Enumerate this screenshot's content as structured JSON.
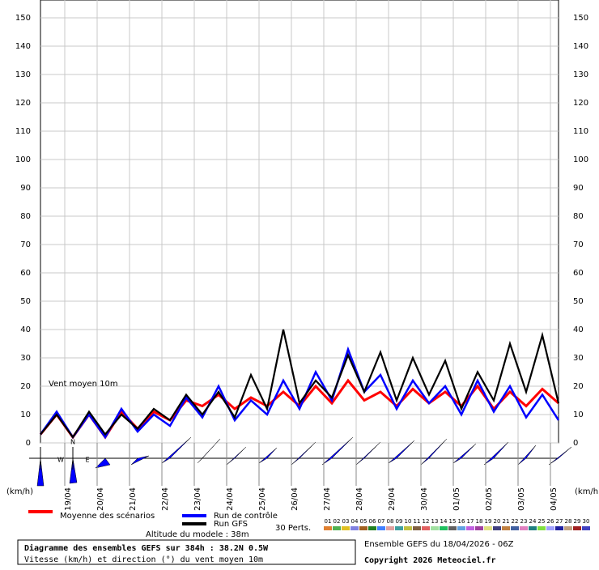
{
  "chart_data": {
    "type": "line",
    "annotation": "Vent moyen 10m",
    "unit_label": "(km/h)",
    "compass": [
      "N",
      "W",
      "E"
    ],
    "x": [
      0,
      12,
      24,
      36,
      48,
      60,
      72,
      84,
      96,
      108,
      120,
      132,
      144,
      156,
      168,
      180,
      192,
      204,
      216,
      228,
      240,
      252,
      264,
      276,
      288,
      300,
      312,
      324,
      336,
      348,
      360,
      372,
      384
    ],
    "xlim": [
      0,
      384
    ],
    "xticks": [
      {
        "value": 18,
        "label": "19/04"
      },
      {
        "value": 42,
        "label": "20/04"
      },
      {
        "value": 66,
        "label": "21/04"
      },
      {
        "value": 90,
        "label": "22/04"
      },
      {
        "value": 114,
        "label": "23/04"
      },
      {
        "value": 138,
        "label": "24/04"
      },
      {
        "value": 162,
        "label": "25/04"
      },
      {
        "value": 186,
        "label": "26/04"
      },
      {
        "value": 210,
        "label": "27/04"
      },
      {
        "value": 234,
        "label": "28/04"
      },
      {
        "value": 258,
        "label": "29/04"
      },
      {
        "value": 282,
        "label": "30/04"
      },
      {
        "value": 306,
        "label": "01/05"
      },
      {
        "value": 330,
        "label": "02/05"
      },
      {
        "value": 354,
        "label": "03/05"
      },
      {
        "value": 378,
        "label": "04/05"
      }
    ],
    "ylim": [
      0,
      150
    ],
    "yticks": [
      0,
      10,
      20,
      30,
      40,
      50,
      60,
      70,
      80,
      90,
      100,
      110,
      120,
      130,
      140,
      150
    ],
    "grid": true,
    "series": [
      {
        "name": "Moyenne des scénarios",
        "color": "#ff0000",
        "values": [
          3,
          10,
          2,
          10,
          2,
          11,
          5,
          11,
          8,
          15,
          13,
          17,
          12,
          16,
          13,
          18,
          13,
          20,
          14,
          22,
          15,
          18,
          13,
          19,
          14,
          18,
          13,
          20,
          12,
          18,
          13,
          19,
          14
        ]
      },
      {
        "name": "Run de contrôle",
        "color": "#0000ff",
        "values": [
          3,
          11,
          2,
          10,
          2,
          12,
          4,
          10,
          6,
          16,
          9,
          20,
          8,
          15,
          10,
          22,
          12,
          25,
          15,
          33,
          18,
          24,
          12,
          22,
          14,
          20,
          10,
          22,
          11,
          20,
          9,
          17,
          8
        ]
      },
      {
        "name": "Run GFS",
        "color": "#000000",
        "values": [
          3,
          10,
          2,
          11,
          3,
          10,
          5,
          12,
          8,
          17,
          10,
          18,
          9,
          24,
          12,
          40,
          14,
          22,
          16,
          31,
          18,
          32,
          15,
          30,
          17,
          29,
          12,
          25,
          15,
          35,
          18,
          38,
          14
        ]
      }
    ],
    "perturbations_label": "30 Perts.",
    "perturbations": [
      {
        "label": "01",
        "color": "#e08030"
      },
      {
        "label": "02",
        "color": "#50b050"
      },
      {
        "label": "03",
        "color": "#e0c020"
      },
      {
        "label": "04",
        "color": "#8080e0"
      },
      {
        "label": "05",
        "color": "#a06020"
      },
      {
        "label": "06",
        "color": "#208020"
      },
      {
        "label": "07",
        "color": "#4080ff"
      },
      {
        "label": "08",
        "color": "#e0a0a0"
      },
      {
        "label": "09",
        "color": "#40a0a0"
      },
      {
        "label": "10",
        "color": "#c0c040"
      },
      {
        "label": "11",
        "color": "#806040"
      },
      {
        "label": "12",
        "color": "#e06060"
      },
      {
        "label": "13",
        "color": "#a0e0a0"
      },
      {
        "label": "14",
        "color": "#20c060"
      },
      {
        "label": "15",
        "color": "#606060"
      },
      {
        "label": "16",
        "color": "#60a0e0"
      },
      {
        "label": "17",
        "color": "#c060e0"
      },
      {
        "label": "18",
        "color": "#a040a0"
      },
      {
        "label": "19",
        "color": "#e0e080"
      },
      {
        "label": "20",
        "color": "#404080"
      },
      {
        "label": "21",
        "color": "#c08040"
      },
      {
        "label": "22",
        "color": "#4060a0"
      },
      {
        "label": "23",
        "color": "#e080c0"
      },
      {
        "label": "24",
        "color": "#208080"
      },
      {
        "label": "25",
        "color": "#80e040"
      },
      {
        "label": "26",
        "color": "#a0a0ff"
      },
      {
        "label": "27",
        "color": "#2020a0"
      },
      {
        "label": "28",
        "color": "#c0a080"
      },
      {
        "label": "29",
        "color": "#a02020"
      },
      {
        "label": "30",
        "color": "#4040c0"
      }
    ],
    "altitude": "Altitude du modele : 38m",
    "box_title": "Diagramme des ensembles GEFS sur 384h : 38.2N 0.5W",
    "box_subtitle": "Vitesse (km/h) et direction (°) du vent moyen 10m",
    "run_info": "Ensemble GEFS du 18/04/2026 - 06Z",
    "copyright": "Copyright 2026 Meteociel.fr"
  }
}
